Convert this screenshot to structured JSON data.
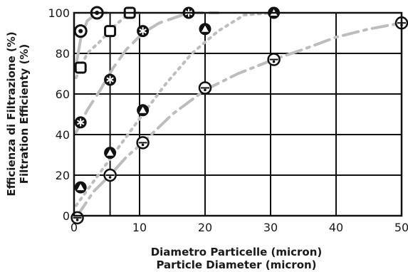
{
  "chart_data": {
    "type": "scatter",
    "xlabel": [
      "Diametro Particelle (micron)",
      "Particle Diameter (micron)"
    ],
    "ylabel": [
      "Efficienza di Filtrazione (%)",
      "Filtration Efficienty (%)"
    ],
    "xlim": [
      0,
      50
    ],
    "ylim": [
      0,
      100
    ],
    "x_ticks": [
      0,
      10,
      20,
      30,
      40,
      50
    ],
    "y_ticks": [
      0,
      20,
      40,
      60,
      80,
      100
    ],
    "grid": true,
    "legend": "none",
    "series": [
      {
        "marker": "circle-dot",
        "points": [
          [
            1,
            91
          ],
          [
            3.5,
            100
          ]
        ],
        "curve": [
          [
            0.3,
            74
          ],
          [
            1,
            87
          ],
          [
            2,
            96
          ],
          [
            3.5,
            100
          ],
          [
            5,
            100
          ]
        ],
        "line_style": "solid"
      },
      {
        "marker": "square",
        "points": [
          [
            1,
            73
          ],
          [
            5.5,
            91
          ],
          [
            8.5,
            100
          ]
        ],
        "curve": [
          [
            0.3,
            68
          ],
          [
            2,
            80
          ],
          [
            4,
            86
          ],
          [
            6,
            93
          ],
          [
            8.5,
            100
          ],
          [
            10,
            100
          ]
        ],
        "line_style": "dotted"
      },
      {
        "marker": "asterisk",
        "points": [
          [
            1,
            46
          ],
          [
            5.5,
            67
          ],
          [
            10.5,
            91
          ],
          [
            17.5,
            100
          ]
        ],
        "curve": [
          [
            0.3,
            41
          ],
          [
            2,
            52
          ],
          [
            4,
            62
          ],
          [
            6,
            73
          ],
          [
            8,
            82
          ],
          [
            10.5,
            90
          ],
          [
            13,
            95
          ],
          [
            17.5,
            100
          ],
          [
            22,
            100
          ]
        ],
        "line_style": "dashed"
      },
      {
        "marker": "triangle",
        "points": [
          [
            1,
            14
          ],
          [
            5.5,
            31
          ],
          [
            10.5,
            52
          ],
          [
            20,
            92
          ],
          [
            30.5,
            100
          ]
        ],
        "curve": [
          [
            0.3,
            5
          ],
          [
            3,
            17
          ],
          [
            5.5,
            28
          ],
          [
            8,
            39
          ],
          [
            10.5,
            50
          ],
          [
            14,
            65
          ],
          [
            18,
            80
          ],
          [
            22,
            91
          ],
          [
            26,
            99
          ],
          [
            30.5,
            100
          ]
        ],
        "line_style": "dotted"
      },
      {
        "marker": "circle-bar",
        "points": [
          [
            0.5,
            -1
          ],
          [
            5.5,
            20
          ],
          [
            10.5,
            36
          ],
          [
            20,
            63
          ],
          [
            30.5,
            77
          ],
          [
            50,
            95
          ]
        ],
        "curve": [
          [
            0.5,
            0
          ],
          [
            3,
            12
          ],
          [
            5.5,
            20
          ],
          [
            8,
            29
          ],
          [
            10.5,
            36
          ],
          [
            15,
            50
          ],
          [
            20,
            62
          ],
          [
            25,
            70
          ],
          [
            30.5,
            77
          ],
          [
            35,
            82
          ],
          [
            40,
            88
          ],
          [
            45,
            92
          ],
          [
            50,
            95
          ]
        ],
        "line_style": "dash-dot"
      }
    ]
  }
}
